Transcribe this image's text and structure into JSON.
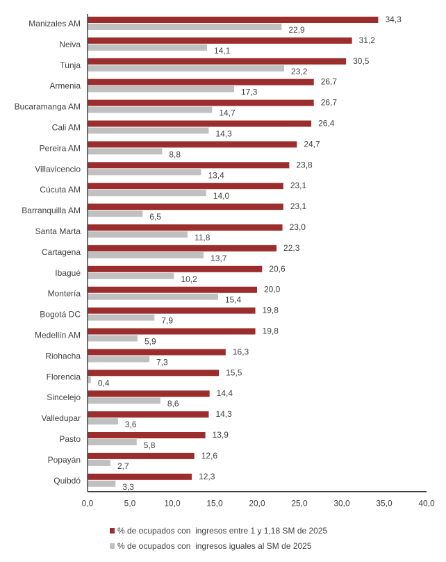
{
  "chart_data": {
    "type": "bar",
    "orientation": "horizontal",
    "title": "",
    "xlabel": "",
    "ylabel": "",
    "xlim": [
      0,
      40
    ],
    "x_ticks": [
      "0,0",
      "5,0",
      "10,0",
      "15,0",
      "20,0",
      "25,0",
      "30,0",
      "35,0",
      "40,0"
    ],
    "x_tick_values": [
      0,
      5,
      10,
      15,
      20,
      25,
      30,
      35,
      40
    ],
    "grid": false,
    "legend_position": "bottom",
    "categories": [
      "Manizales AM",
      "Neiva",
      "Tunja",
      "Armenia",
      "Bucaramanga AM",
      "Cali AM",
      "Pereira AM",
      "Villavicencio",
      "Cúcuta AM",
      "Barranquilla AM",
      "Santa Marta",
      "Cartagena",
      "Ibagué",
      "Montería",
      "Bogotá DC",
      "Medellín AM",
      "Riohacha",
      "Florencia",
      "Sincelejo",
      "Valledupar",
      "Pasto",
      "Popayán",
      "Quibdó"
    ],
    "series": [
      {
        "name": "% de ocupados con  ingresos entre 1 y 1,18 SM de 2025",
        "color": "#9B2D2D",
        "values": [
          34.3,
          31.2,
          30.5,
          26.7,
          26.7,
          26.4,
          24.7,
          23.8,
          23.1,
          23.1,
          23.0,
          22.3,
          20.6,
          20.0,
          19.8,
          19.8,
          16.3,
          15.5,
          14.4,
          14.3,
          13.9,
          12.6,
          12.3
        ],
        "labels": [
          "34,3",
          "31,2",
          "30,5",
          "26,7",
          "26,7",
          "26,4",
          "24,7",
          "23,8",
          "23,1",
          "23,1",
          "23,0",
          "22,3",
          "20,6",
          "20,0",
          "19,8",
          "19,8",
          "16,3",
          "15,5",
          "14,4",
          "14,3",
          "13,9",
          "12,6",
          "12,3"
        ]
      },
      {
        "name": "% de ocupados con  ingresos iguales al SM de 2025",
        "color": "#C0C0C0",
        "values": [
          22.9,
          14.1,
          23.2,
          17.3,
          14.7,
          14.3,
          8.8,
          13.4,
          14.0,
          6.5,
          11.8,
          13.7,
          10.2,
          15.4,
          7.9,
          5.9,
          7.3,
          0.4,
          8.6,
          3.6,
          5.8,
          2.7,
          3.3
        ],
        "labels": [
          "22,9",
          "14,1",
          "23,2",
          "17,3",
          "14,7",
          "14,3",
          "8,8",
          "13,4",
          "14,0",
          "6,5",
          "11,8",
          "13,7",
          "10,2",
          "15,4",
          "7,9",
          "5,9",
          "7,3",
          "0,4",
          "8,6",
          "3,6",
          "5,8",
          "2,7",
          "3,3"
        ]
      }
    ]
  }
}
